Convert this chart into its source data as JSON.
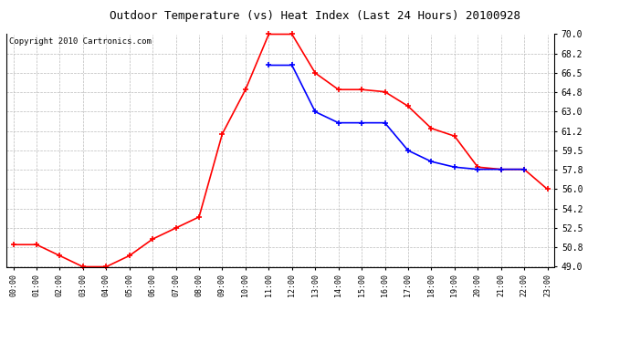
{
  "title": "Outdoor Temperature (vs) Heat Index (Last 24 Hours) 20100928",
  "copyright": "Copyright 2010 Cartronics.com",
  "hours": [
    "00:00",
    "01:00",
    "02:00",
    "03:00",
    "04:00",
    "05:00",
    "06:00",
    "07:00",
    "08:00",
    "09:00",
    "10:00",
    "11:00",
    "12:00",
    "13:00",
    "14:00",
    "15:00",
    "16:00",
    "17:00",
    "18:00",
    "19:00",
    "20:00",
    "21:00",
    "22:00",
    "23:00"
  ],
  "temp": [
    51.0,
    51.0,
    50.0,
    49.0,
    49.0,
    50.0,
    51.5,
    52.5,
    53.5,
    61.0,
    65.0,
    70.0,
    70.0,
    66.5,
    65.0,
    65.0,
    64.8,
    63.5,
    61.5,
    60.8,
    58.0,
    57.8,
    57.8,
    56.0
  ],
  "heat_index": [
    null,
    null,
    null,
    null,
    null,
    null,
    null,
    null,
    null,
    null,
    null,
    67.2,
    67.2,
    63.0,
    62.0,
    62.0,
    62.0,
    59.5,
    58.5,
    58.0,
    57.8,
    57.8,
    57.8,
    null
  ],
  "temp_color": "#ff0000",
  "heat_color": "#0000ff",
  "bg_color": "#ffffff",
  "grid_color": "#bbbbbb",
  "ylim": [
    49.0,
    70.0
  ],
  "yticks": [
    49.0,
    50.8,
    52.5,
    54.2,
    56.0,
    57.8,
    59.5,
    61.2,
    63.0,
    64.8,
    66.5,
    68.2,
    70.0
  ],
  "title_fontsize": 9,
  "copyright_fontsize": 6.5,
  "marker": "+",
  "markersize": 5,
  "markeredgewidth": 1.2,
  "linewidth": 1.2
}
